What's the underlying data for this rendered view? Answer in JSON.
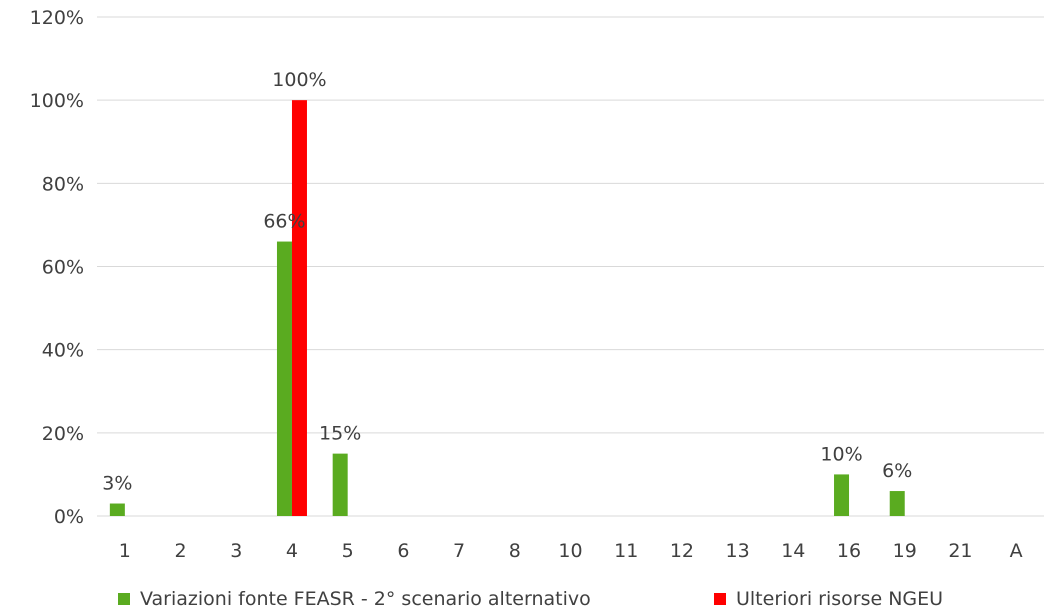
{
  "chart_data": {
    "type": "bar",
    "categories": [
      "1",
      "2",
      "3",
      "4",
      "5",
      "6",
      "7",
      "8",
      "10",
      "11",
      "12",
      "13",
      "14",
      "16",
      "19",
      "21",
      "A"
    ],
    "series": [
      {
        "name": "Variazioni  fonte FEASR - 2° scenario alternativo",
        "color": "#5aab20",
        "values": [
          3,
          0,
          0,
          66,
          15,
          0,
          0,
          0,
          0,
          0,
          0,
          0,
          0,
          10,
          6,
          0,
          0
        ],
        "labels": [
          "3%",
          "",
          "",
          "66%",
          "15%",
          "",
          "",
          "",
          "",
          "",
          "",
          "",
          "",
          "10%",
          "6%",
          "",
          ""
        ]
      },
      {
        "name": "Ulteriori risorse NGEU",
        "color": "#ff0000",
        "values": [
          0,
          0,
          0,
          100,
          0,
          0,
          0,
          0,
          0,
          0,
          0,
          0,
          0,
          0,
          0,
          0,
          0
        ],
        "labels": [
          "",
          "",
          "",
          "100%",
          "",
          "",
          "",
          "",
          "",
          "",
          "",
          "",
          "",
          "",
          "",
          "",
          ""
        ]
      }
    ],
    "ylim": [
      0,
      120
    ],
    "yticks": [
      0,
      20,
      40,
      60,
      80,
      100,
      120
    ],
    "ytick_labels": [
      "0%",
      "20%",
      "40%",
      "60%",
      "80%",
      "100%",
      "120%"
    ],
    "grid": true,
    "legend_position": "bottom"
  }
}
